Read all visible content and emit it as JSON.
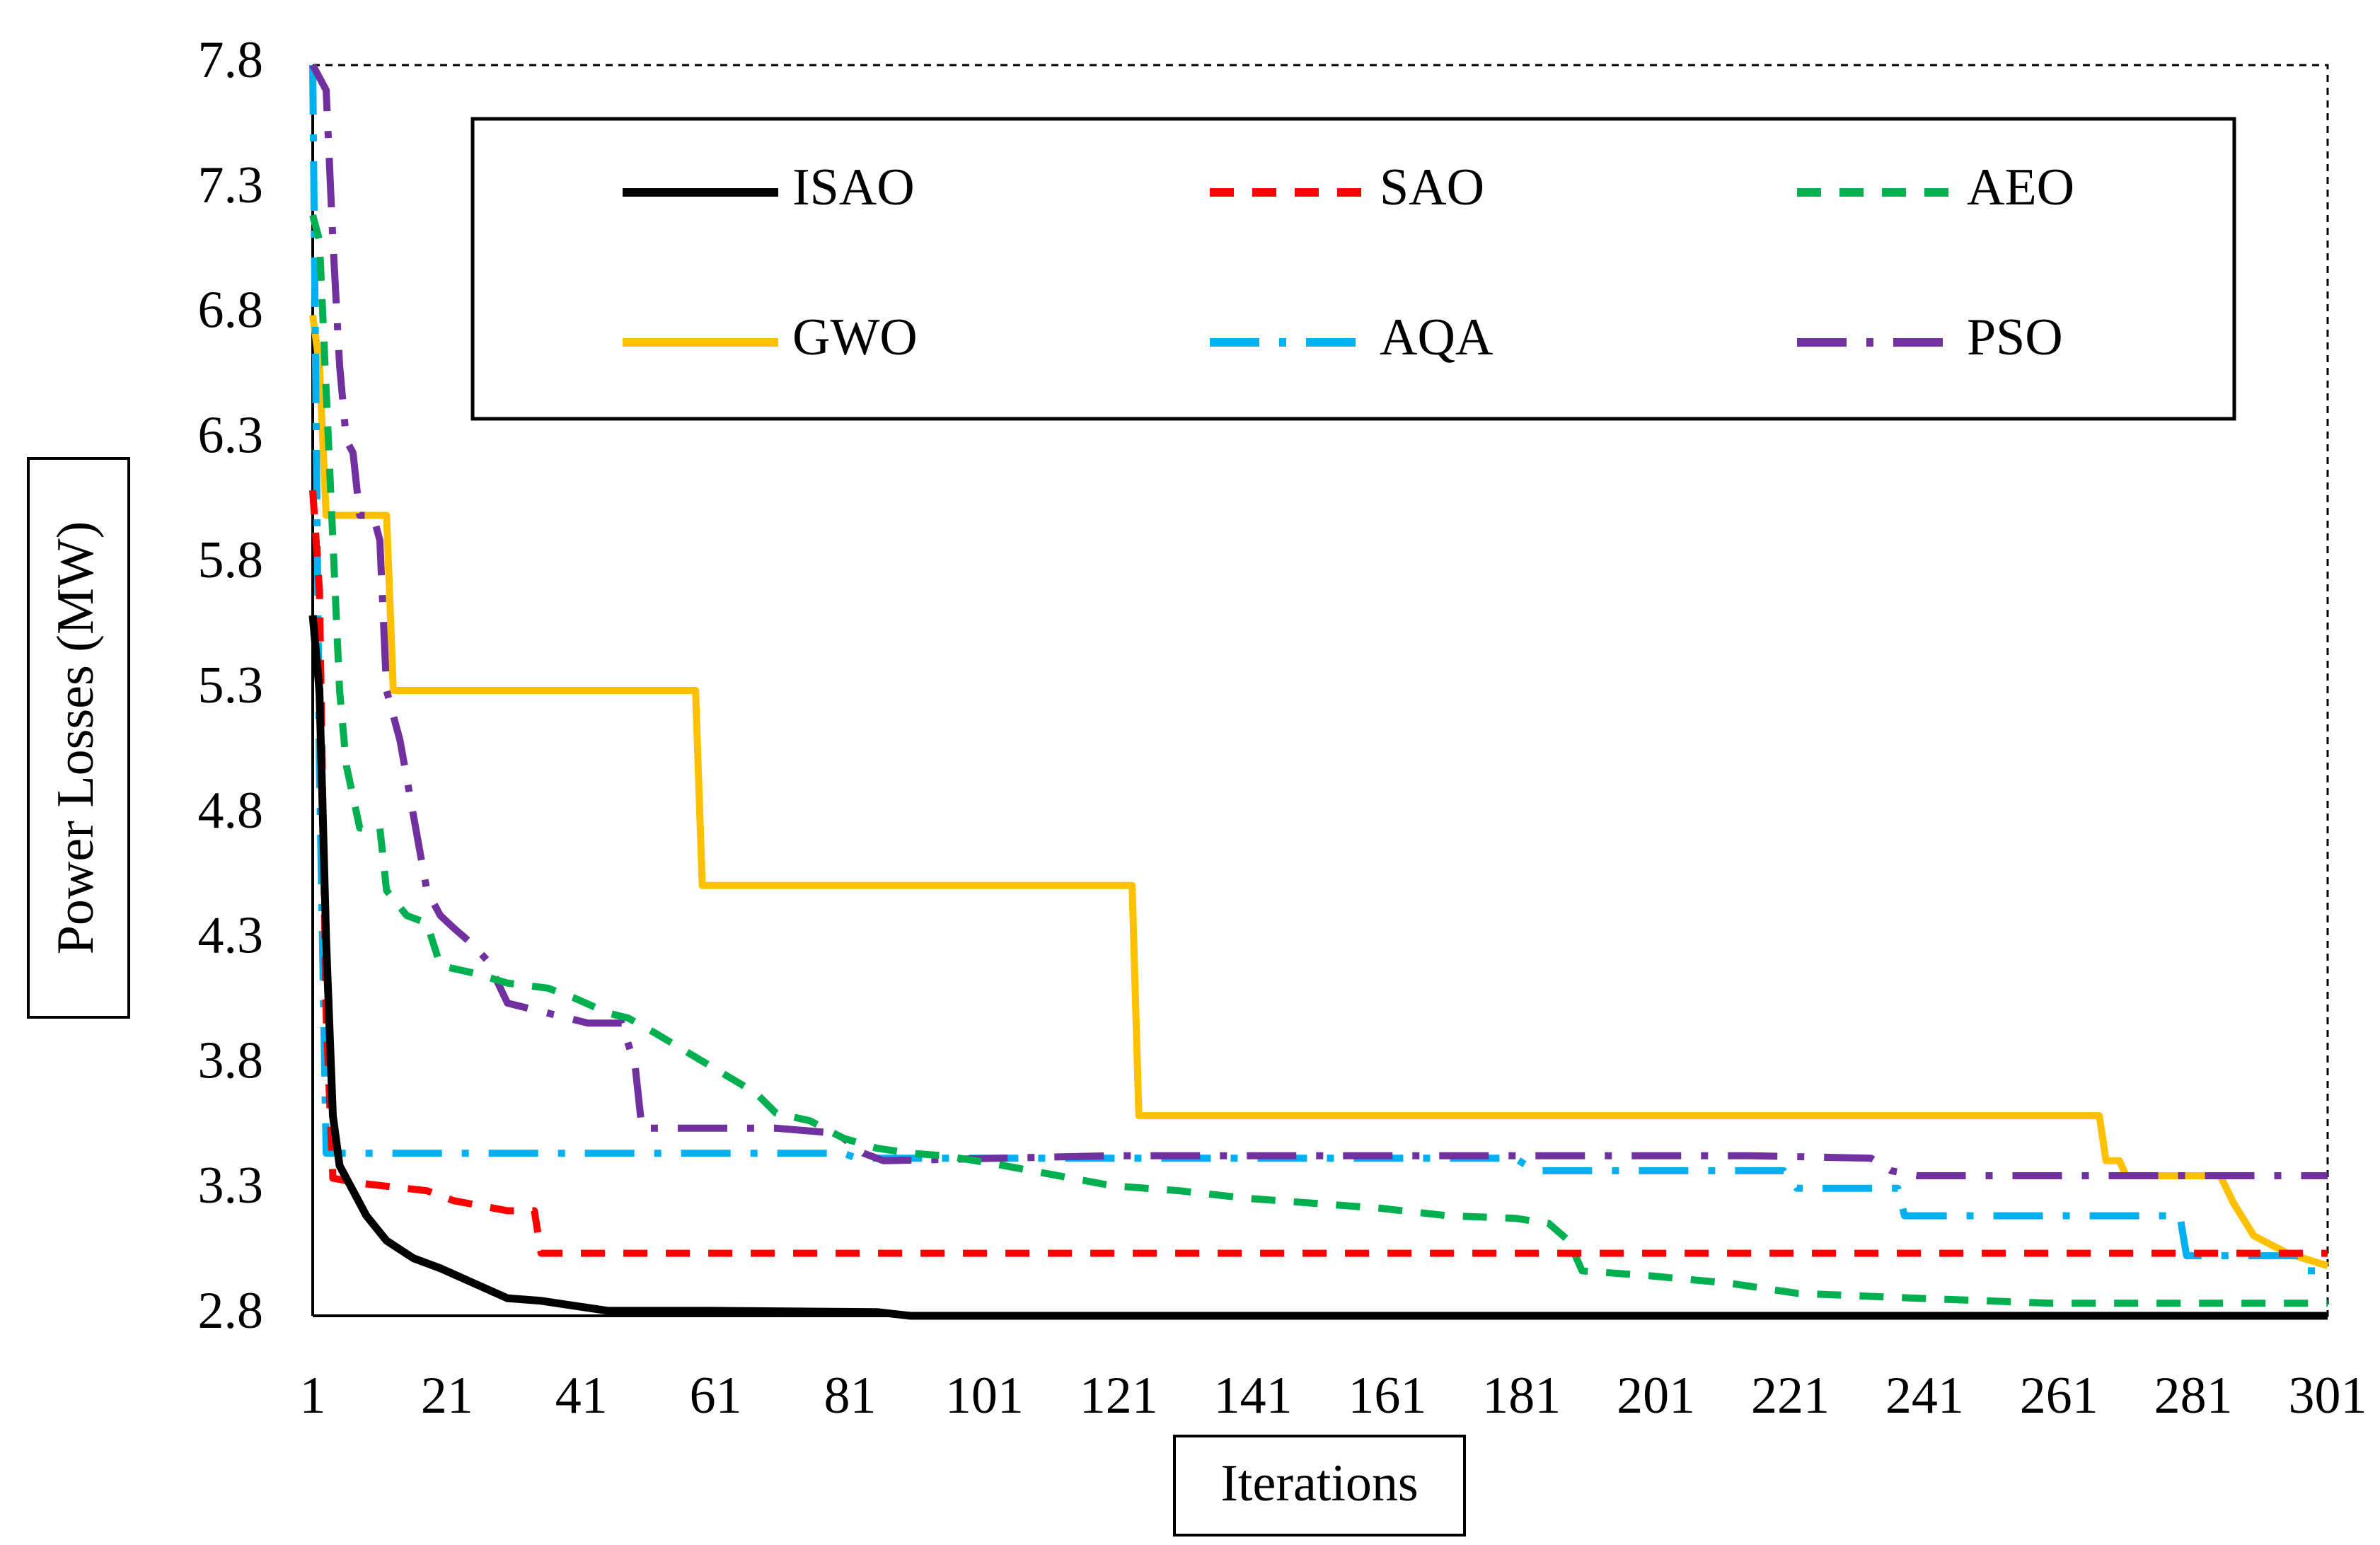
{
  "chart_data": {
    "type": "line",
    "title": "",
    "xlabel": "Iterations",
    "ylabel": "Power Losses (MW)",
    "xlim": [
      1,
      301
    ],
    "ylim": [
      2.8,
      7.8
    ],
    "xticks": [
      "1",
      "21",
      "41",
      "61",
      "81",
      "101",
      "121",
      "141",
      "161",
      "181",
      "201",
      "221",
      "241",
      "261",
      "281",
      "301"
    ],
    "yticks": [
      "2.8",
      "3.3",
      "3.8",
      "4.3",
      "4.8",
      "5.3",
      "5.8",
      "6.3",
      "6.8",
      "7.3",
      "7.8"
    ],
    "legend_position": "top",
    "grid": false,
    "series": [
      {
        "name": "ISAO",
        "color": "#000000",
        "dash": "solid",
        "points": [
          [
            1,
            5.6
          ],
          [
            2,
            5.3
          ],
          [
            3,
            4.3
          ],
          [
            4,
            3.6
          ],
          [
            5,
            3.4
          ],
          [
            7,
            3.3
          ],
          [
            9,
            3.2
          ],
          [
            12,
            3.1
          ],
          [
            16,
            3.03
          ],
          [
            20,
            2.99
          ],
          [
            25,
            2.93
          ],
          [
            30,
            2.87
          ],
          [
            35,
            2.86
          ],
          [
            40,
            2.84
          ],
          [
            45,
            2.82
          ],
          [
            60,
            2.82
          ],
          [
            85,
            2.815
          ],
          [
            90,
            2.8
          ],
          [
            301,
            2.8
          ]
        ]
      },
      {
        "name": "SAO",
        "color": "#ff0000",
        "dash": "dashed",
        "points": [
          [
            1,
            6.1
          ],
          [
            2,
            5.7
          ],
          [
            3,
            4.0
          ],
          [
            4,
            3.35
          ],
          [
            8,
            3.33
          ],
          [
            18,
            3.3
          ],
          [
            22,
            3.26
          ],
          [
            30,
            3.22
          ],
          [
            34,
            3.22
          ],
          [
            35,
            3.05
          ],
          [
            301,
            3.05
          ]
        ]
      },
      {
        "name": "AEO",
        "color": "#00b050",
        "dash": "dashed",
        "points": [
          [
            1,
            7.2
          ],
          [
            2,
            7.1
          ],
          [
            3,
            6.5
          ],
          [
            4,
            5.9
          ],
          [
            5,
            5.3
          ],
          [
            6,
            5.0
          ],
          [
            8,
            4.75
          ],
          [
            11,
            4.75
          ],
          [
            12,
            4.5
          ],
          [
            15,
            4.4
          ],
          [
            18,
            4.37
          ],
          [
            20,
            4.2
          ],
          [
            25,
            4.17
          ],
          [
            30,
            4.13
          ],
          [
            36,
            4.11
          ],
          [
            40,
            4.07
          ],
          [
            45,
            4.01
          ],
          [
            48,
            3.99
          ],
          [
            52,
            3.93
          ],
          [
            57,
            3.85
          ],
          [
            62,
            3.77
          ],
          [
            67,
            3.69
          ],
          [
            70,
            3.61
          ],
          [
            75,
            3.58
          ],
          [
            80,
            3.51
          ],
          [
            85,
            3.47
          ],
          [
            90,
            3.45
          ],
          [
            95,
            3.44
          ],
          [
            102,
            3.41
          ],
          [
            110,
            3.37
          ],
          [
            120,
            3.32
          ],
          [
            130,
            3.3
          ],
          [
            140,
            3.27
          ],
          [
            150,
            3.25
          ],
          [
            160,
            3.23
          ],
          [
            170,
            3.2
          ],
          [
            180,
            3.19
          ],
          [
            185,
            3.17
          ],
          [
            188,
            3.1
          ],
          [
            190,
            2.98
          ],
          [
            200,
            2.96
          ],
          [
            212,
            2.93
          ],
          [
            222,
            2.89
          ],
          [
            240,
            2.87
          ],
          [
            260,
            2.85
          ],
          [
            301,
            2.85
          ]
        ]
      },
      {
        "name": "GWO",
        "color": "#ffc000",
        "dash": "solid",
        "points": [
          [
            1,
            6.8
          ],
          [
            2,
            6.6
          ],
          [
            3,
            6.0
          ],
          [
            12,
            6.0
          ],
          [
            13,
            5.3
          ],
          [
            58,
            5.3
          ],
          [
            59,
            4.52
          ],
          [
            123,
            4.52
          ],
          [
            124,
            3.6
          ],
          [
            267,
            3.6
          ],
          [
            268,
            3.42
          ],
          [
            270,
            3.42
          ],
          [
            271,
            3.36
          ],
          [
            285,
            3.36
          ],
          [
            287,
            3.25
          ],
          [
            290,
            3.12
          ],
          [
            295,
            3.05
          ],
          [
            301,
            3.0
          ]
        ]
      },
      {
        "name": "AQA",
        "color": "#00b0f0",
        "dash": "dashdot",
        "points": [
          [
            1,
            7.8
          ],
          [
            2,
            5.0
          ],
          [
            3,
            3.45
          ],
          [
            80,
            3.45
          ],
          [
            82,
            3.43
          ],
          [
            180,
            3.43
          ],
          [
            183,
            3.38
          ],
          [
            220,
            3.38
          ],
          [
            222,
            3.31
          ],
          [
            237,
            3.31
          ],
          [
            238,
            3.2
          ],
          [
            279,
            3.2
          ],
          [
            280,
            3.04
          ],
          [
            297,
            3.04
          ],
          [
            298,
            2.98
          ],
          [
            301,
            2.98
          ]
        ]
      },
      {
        "name": "PSO",
        "color": "#7030a0",
        "dash": "dashdot",
        "points": [
          [
            1,
            7.8
          ],
          [
            3,
            7.7
          ],
          [
            4,
            7.1
          ],
          [
            5,
            6.6
          ],
          [
            6,
            6.3
          ],
          [
            7,
            6.25
          ],
          [
            8,
            6.0
          ],
          [
            10,
            6.0
          ],
          [
            11,
            5.9
          ],
          [
            12,
            5.3
          ],
          [
            14,
            5.1
          ],
          [
            16,
            4.8
          ],
          [
            18,
            4.5
          ],
          [
            20,
            4.4
          ],
          [
            22,
            4.35
          ],
          [
            25,
            4.28
          ],
          [
            27,
            4.22
          ],
          [
            30,
            4.05
          ],
          [
            36,
            4.01
          ],
          [
            42,
            3.97
          ],
          [
            47,
            3.97
          ],
          [
            49,
            3.8
          ],
          [
            50,
            3.55
          ],
          [
            55,
            3.55
          ],
          [
            70,
            3.55
          ],
          [
            79,
            3.53
          ],
          [
            83,
            3.45
          ],
          [
            86,
            3.42
          ],
          [
            120,
            3.44
          ],
          [
            160,
            3.44
          ],
          [
            215,
            3.44
          ],
          [
            233,
            3.43
          ],
          [
            236,
            3.38
          ],
          [
            240,
            3.36
          ],
          [
            301,
            3.36
          ]
        ]
      }
    ]
  }
}
